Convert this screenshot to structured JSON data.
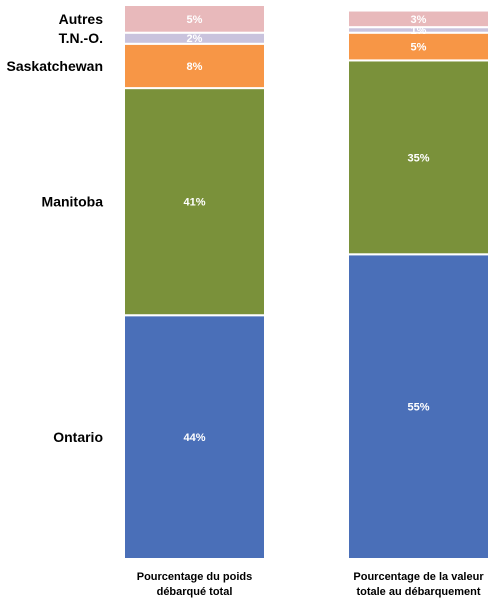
{
  "chart_data": {
    "type": "bar",
    "stacked": true,
    "percent_stacked": true,
    "categories": [
      [
        "Pourcentage du poids",
        "débarqué total"
      ],
      [
        "Pourcentage de la valeur",
        "totale au débarquement"
      ]
    ],
    "series": [
      {
        "name": "Ontario",
        "color": "#4a6fb8",
        "values": [
          44,
          55
        ],
        "labels": [
          "44%",
          "55%"
        ]
      },
      {
        "name": "Manitoba",
        "color": "#7a913a",
        "values": [
          41,
          35
        ],
        "labels": [
          "41%",
          "35%"
        ]
      },
      {
        "name": "Saskatchewan",
        "color": "#f79646",
        "values": [
          8,
          5
        ],
        "labels": [
          "8%",
          "5%"
        ]
      },
      {
        "name": "T.N.-O.",
        "color": "#c9c3dd",
        "values": [
          2,
          1
        ],
        "labels": [
          "2%",
          "1%"
        ]
      },
      {
        "name": "Autres",
        "color": "#e8b9bb",
        "values": [
          5,
          3
        ],
        "labels": [
          "5%",
          "3%"
        ]
      }
    ],
    "ylim": [
      0,
      100
    ],
    "grid": false,
    "legend": "left (series names aligned with first bar)"
  }
}
